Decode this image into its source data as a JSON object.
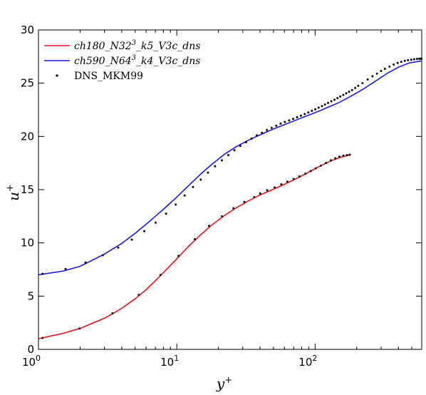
{
  "chart_data": {
    "type": "line",
    "xscale": "log",
    "xlim": [
      1,
      590
    ],
    "ylim": [
      0,
      30
    ],
    "xlabel": "y",
    "xlabel_sup": "+",
    "ylabel": "u",
    "ylabel_sup": "+",
    "x_ticks": [
      {
        "value": 1,
        "base": "10",
        "exp": "0"
      },
      {
        "value": 10,
        "base": "10",
        "exp": "1"
      },
      {
        "value": 100,
        "base": "10",
        "exp": "2"
      }
    ],
    "y_ticks": [
      {
        "value": 0,
        "label": "0"
      },
      {
        "value": 5,
        "label": "5"
      },
      {
        "value": 10,
        "label": "10"
      },
      {
        "value": 15,
        "label": "15"
      },
      {
        "value": 20,
        "label": "20"
      },
      {
        "value": 25,
        "label": "25"
      },
      {
        "value": 30,
        "label": "30"
      }
    ],
    "grid": false,
    "legend_position": "top-left",
    "legend": [
      {
        "text": "ch180_N32",
        "sup": "3",
        "rest": "_k5_V3c_dns",
        "style": "line",
        "color": "#e8141c"
      },
      {
        "text": "ch590_N64",
        "sup": "3",
        "rest": "_k4_V3c_dns",
        "style": "line",
        "color": "#1a1ae6"
      },
      {
        "text": "DNS_MKM99",
        "style": "marker",
        "color": "#000000"
      }
    ],
    "series": [
      {
        "name": "ch180_N32^3_k5_V3c_dns",
        "style": "line",
        "color": "#e8141c",
        "x": [
          1,
          1.5,
          2,
          3,
          4,
          5,
          6,
          7,
          8,
          10,
          12,
          15,
          18,
          22,
          27,
          33,
          40,
          50,
          60,
          75,
          90,
          110,
          130,
          150,
          170,
          180
        ],
        "y": [
          1.0,
          1.5,
          1.97,
          2.92,
          3.85,
          4.75,
          5.6,
          6.45,
          7.2,
          8.5,
          9.6,
          10.8,
          11.7,
          12.55,
          13.3,
          13.95,
          14.5,
          15.05,
          15.5,
          16.1,
          16.65,
          17.25,
          17.7,
          18.0,
          18.2,
          18.25
        ]
      },
      {
        "name": "ch590_N64^3_k4_V3c_dns",
        "style": "line",
        "color": "#1a1ae6",
        "x": [
          1,
          1.5,
          2,
          3,
          4,
          5,
          6,
          7,
          8,
          10,
          12,
          15,
          18,
          22,
          27,
          33,
          40,
          50,
          60,
          75,
          90,
          110,
          130,
          150,
          180,
          220,
          270,
          330,
          400,
          480,
          560,
          590
        ],
        "y": [
          7.0,
          7.35,
          7.8,
          8.95,
          9.95,
          10.9,
          11.75,
          12.5,
          13.15,
          14.3,
          15.3,
          16.5,
          17.4,
          18.3,
          19.05,
          19.65,
          20.15,
          20.7,
          21.1,
          21.6,
          22.0,
          22.45,
          22.85,
          23.2,
          23.75,
          24.4,
          25.15,
          25.9,
          26.5,
          26.9,
          27.05,
          27.1
        ]
      },
      {
        "name": "DNS_MKM99",
        "style": "marker",
        "color": "#000000",
        "x": [
          1.07,
          1.98,
          3.43,
          5.32,
          7.62,
          10.3,
          13.5,
          17.1,
          21.2,
          25.7,
          30.8,
          36.3,
          40.1,
          45.0,
          51.0,
          57.0,
          63.0,
          70.0,
          77.0,
          85.0,
          93.0,
          101.0,
          110.0,
          120.0,
          130.0,
          140.0,
          150.0,
          160.0,
          170.0,
          178.0,
          1.07,
          1.57,
          2.19,
          2.92,
          3.77,
          4.73,
          5.82,
          7.03,
          8.36,
          9.81,
          11.4,
          13.1,
          14.9,
          16.8,
          18.9,
          21.2,
          23.6,
          26.1,
          28.8,
          31.7,
          34.7,
          37.9,
          41.3,
          44.8,
          48.5,
          52.3,
          56.3,
          60.5,
          64.9,
          69.4,
          74.1,
          79.0,
          84.1,
          89.3,
          94.7,
          100.3,
          106.0,
          112.0,
          118.0,
          124.0,
          131.0,
          138.0,
          145.0,
          152.0,
          160.0,
          168.0,
          176.0,
          185.0,
          195.0,
          205.0,
          220.0,
          240.0,
          260.0,
          280.0,
          300.0,
          320.0,
          345.0,
          370.0,
          395.0,
          420.0,
          445.0,
          470.0,
          495.0,
          520.0,
          545.0,
          565.0,
          580.0,
          587.0
        ],
        "y": [
          1.07,
          1.96,
          3.38,
          5.12,
          6.98,
          8.78,
          10.35,
          11.6,
          12.5,
          13.25,
          13.85,
          14.3,
          14.65,
          14.95,
          15.2,
          15.5,
          15.75,
          16.0,
          16.25,
          16.5,
          16.75,
          17.0,
          17.25,
          17.5,
          17.75,
          17.95,
          18.1,
          18.2,
          18.25,
          18.28,
          7.1,
          7.55,
          8.15,
          8.85,
          9.55,
          10.3,
          11.1,
          11.9,
          12.75,
          13.6,
          14.45,
          15.25,
          15.95,
          16.6,
          17.2,
          17.75,
          18.25,
          18.7,
          19.1,
          19.45,
          19.8,
          20.1,
          20.35,
          20.6,
          20.8,
          21.0,
          21.2,
          21.35,
          21.5,
          21.65,
          21.8,
          21.95,
          22.1,
          22.25,
          22.4,
          22.55,
          22.7,
          22.85,
          23.0,
          23.15,
          23.3,
          23.45,
          23.6,
          23.75,
          23.9,
          24.05,
          24.2,
          24.35,
          24.55,
          24.75,
          25.0,
          25.35,
          25.65,
          25.9,
          26.15,
          26.35,
          26.55,
          26.75,
          26.9,
          27.0,
          27.1,
          27.15,
          27.2,
          27.25,
          27.28,
          27.3,
          27.3,
          27.3
        ]
      }
    ]
  }
}
